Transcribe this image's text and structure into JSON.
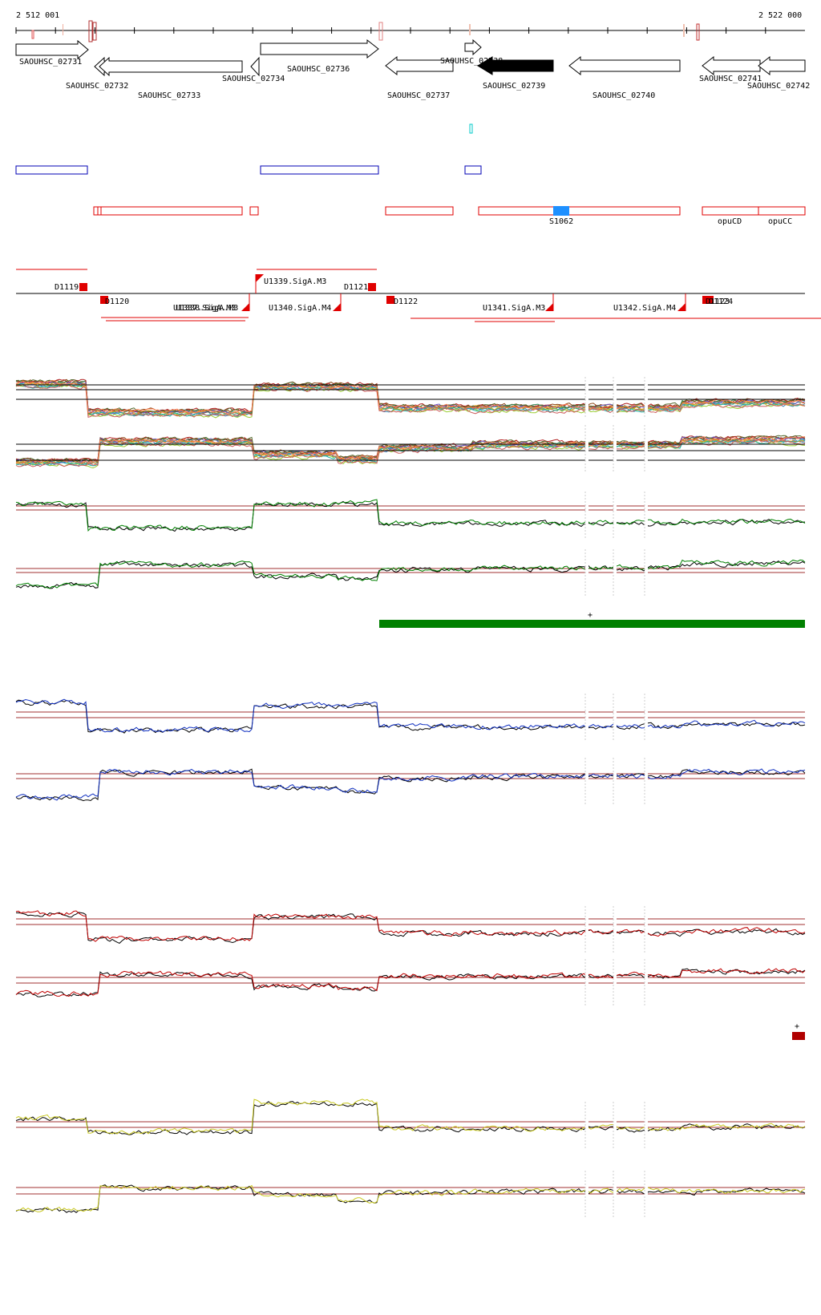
{
  "coords": {
    "start": "2 512 001",
    "end": "2 522 000"
  },
  "genes": [
    {
      "id": "SAOUHSC_02731",
      "strand": "+"
    },
    {
      "id": "SAOUHSC_02732",
      "strand": "-"
    },
    {
      "id": "SAOUHSC_02733",
      "strand": "-"
    },
    {
      "id": "SAOUHSC_02734",
      "strand": "-"
    },
    {
      "id": "SAOUHSC_02736",
      "strand": "+"
    },
    {
      "id": "SAOUHSC_02737",
      "strand": "-"
    },
    {
      "id": "SAOUHSC_02738",
      "strand": "+"
    },
    {
      "id": "SAOUHSC_02739",
      "strand": "-",
      "highlight": true
    },
    {
      "id": "SAOUHSC_02740",
      "strand": "-"
    },
    {
      "id": "SAOUHSC_02741",
      "strand": "-"
    },
    {
      "id": "SAOUHSC_02742",
      "strand": "-"
    }
  ],
  "red_feature_labels": {
    "s1062": "S1062",
    "opucd": "opuCD",
    "opucc": "opuCC"
  },
  "segments": {
    "d1119": "D1119",
    "d1120": "D1120",
    "d1121": "D1121",
    "d1122": "D1122",
    "d1123": "D1123",
    "d1124": "D1124",
    "u1337": "U1337.SigA.M3",
    "u1338": "U1338.SigA.M3",
    "u1339": "U1339.SigA.M3",
    "u1340": "U1340.SigA.M4",
    "u1341": "U1341.SigA.M3",
    "u1342": "U1342.SigA.M4"
  },
  "track_markers": {
    "green_plus": "+",
    "red_plus": "+"
  },
  "colors": {
    "gene_outline": "#000000",
    "gene_highlight": "#000000",
    "feature_blue": "#0000b4",
    "feature_red": "#e00000",
    "feature_cyan": "#00c8c8",
    "s1062_fill": "#1e90ff",
    "track_green": "#008000",
    "track_blue": "#1030c0",
    "track_red": "#c00000",
    "track_yellow": "#c8c820",
    "threshold_line": "#a03030"
  }
}
